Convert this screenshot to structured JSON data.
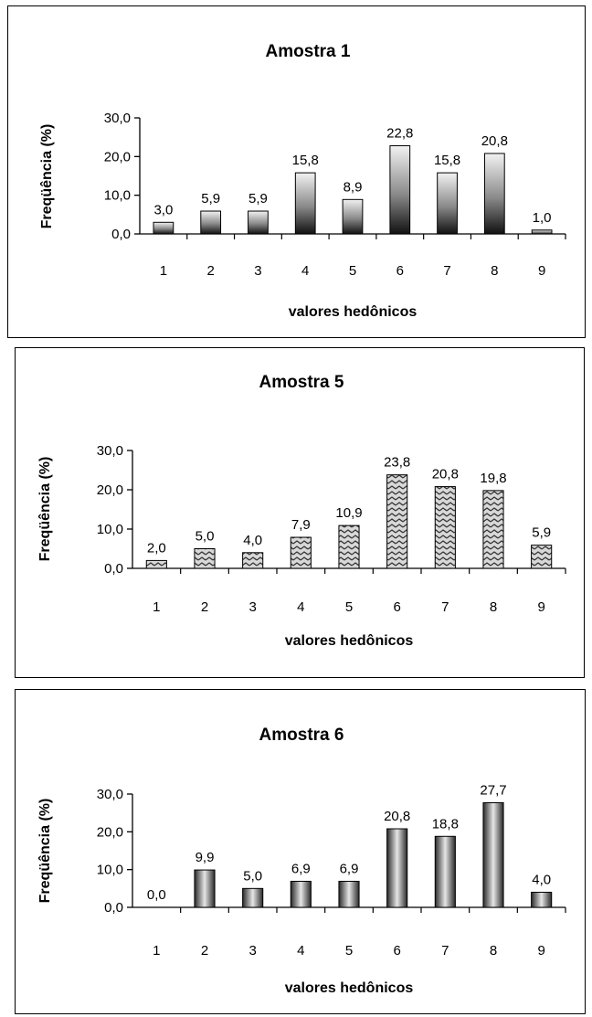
{
  "chart_data": [
    {
      "type": "bar",
      "title": "Amostra 1",
      "xlabel": "valores hedônicos",
      "ylabel": "Freqüência (%)",
      "categories": [
        "1",
        "2",
        "3",
        "4",
        "5",
        "6",
        "7",
        "8",
        "9"
      ],
      "values": [
        3.0,
        5.9,
        5.9,
        15.8,
        8.9,
        22.8,
        15.8,
        20.8,
        1.0
      ],
      "value_labels": [
        "3,0",
        "5,9",
        "5,9",
        "15,8",
        "8,9",
        "22,8",
        "15,8",
        "20,8",
        "1,0"
      ],
      "yticks": [
        "0,0",
        "10,0",
        "20,0",
        "30,0"
      ],
      "ylim": [
        0,
        30
      ],
      "bar_style": "vertical-gradient",
      "legend": "none",
      "grid": false
    },
    {
      "type": "bar",
      "title": "Amostra 5",
      "xlabel": "valores hedônicos",
      "ylabel": "Freqüência (%)",
      "categories": [
        "1",
        "2",
        "3",
        "4",
        "5",
        "6",
        "7",
        "8",
        "9"
      ],
      "values": [
        2.0,
        5.0,
        4.0,
        7.9,
        10.9,
        23.8,
        20.8,
        19.8,
        5.9
      ],
      "value_labels": [
        "2,0",
        "5,0",
        "4,0",
        "7,9",
        "10,9",
        "23,8",
        "20,8",
        "19,8",
        "5,9"
      ],
      "yticks": [
        "0,0",
        "10,0",
        "20,0",
        "30,0"
      ],
      "ylim": [
        0,
        30
      ],
      "bar_style": "zigzag-pattern",
      "legend": "none",
      "grid": false
    },
    {
      "type": "bar",
      "title": "Amostra 6",
      "xlabel": "valores hedônicos",
      "ylabel": "Freqüência (%)",
      "categories": [
        "1",
        "2",
        "3",
        "4",
        "5",
        "6",
        "7",
        "8",
        "9"
      ],
      "values": [
        0.0,
        9.9,
        5.0,
        6.9,
        6.9,
        20.8,
        18.8,
        27.7,
        4.0
      ],
      "value_labels": [
        "0,0",
        "9,9",
        "5,0",
        "6,9",
        "6,9",
        "20,8",
        "18,8",
        "27,7",
        "4,0"
      ],
      "yticks": [
        "0,0",
        "10,0",
        "20,0",
        "30,0"
      ],
      "ylim": [
        0,
        30
      ],
      "bar_style": "horizontal-gradient",
      "legend": "none",
      "grid": false
    }
  ],
  "colors": {
    "bar_dark": "#111111",
    "bar_light": "#f2f2f2",
    "bar_mid": "#8a8a8a",
    "axis": "#000000"
  }
}
